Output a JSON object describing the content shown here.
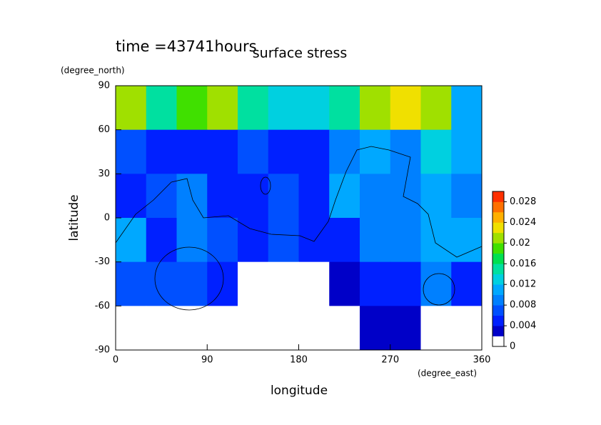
{
  "chart_data": {
    "type": "heatmap",
    "title": "surface stress",
    "subtitle": "time =43741hours",
    "xlabel": "longitude",
    "ylabel": "latitude",
    "xunit": "(degree_east)",
    "yunit": "(degree_north)",
    "x": [
      15,
      45,
      75,
      105,
      135,
      165,
      195,
      225,
      255,
      285,
      315,
      345
    ],
    "y": [
      75,
      45,
      15,
      -15,
      -45,
      -75
    ],
    "z": [
      [
        0.02,
        0.015,
        0.018,
        0.02,
        0.015,
        0.012,
        0.012,
        0.015,
        0.02,
        0.022,
        0.02,
        0.01
      ],
      [
        0.006,
        0.005,
        0.004,
        0.004,
        0.006,
        0.004,
        0.004,
        0.008,
        0.01,
        0.008,
        0.012,
        0.01
      ],
      [
        0.005,
        0.006,
        0.008,
        0.005,
        0.004,
        0.006,
        0.004,
        0.01,
        0.008,
        0.008,
        0.01,
        0.008
      ],
      [
        0.01,
        0.004,
        0.008,
        0.006,
        0.004,
        0.006,
        0.004,
        0.004,
        0.008,
        0.008,
        0.01,
        0.01
      ],
      [
        0.006,
        0.006,
        0.006,
        0.004,
        0,
        0,
        0,
        0.002,
        0.004,
        0.004,
        0.008,
        0.004
      ],
      [
        0,
        0,
        0,
        0,
        0,
        0,
        0,
        0,
        0.003,
        0.002,
        0,
        0
      ]
    ],
    "xlim": [
      0,
      360
    ],
    "ylim": [
      -90,
      90
    ],
    "xticks": [
      0,
      90,
      180,
      270,
      360
    ],
    "yticks": [
      90,
      60,
      30,
      0,
      -30,
      -60,
      -90
    ],
    "zlim": [
      0,
      0.03
    ],
    "zticks": [
      0,
      0.004,
      0.008,
      0.012,
      0.016,
      0.02,
      0.024,
      0.028
    ],
    "colors": [
      "#ffffff",
      "#0000c8",
      "#0020ff",
      "#0050ff",
      "#0080ff",
      "#00a8ff",
      "#00d0e0",
      "#00e0a0",
      "#00e050",
      "#40e000",
      "#a0e000",
      "#f0e000",
      "#ffb000",
      "#ff7000",
      "#ff3000"
    ]
  }
}
